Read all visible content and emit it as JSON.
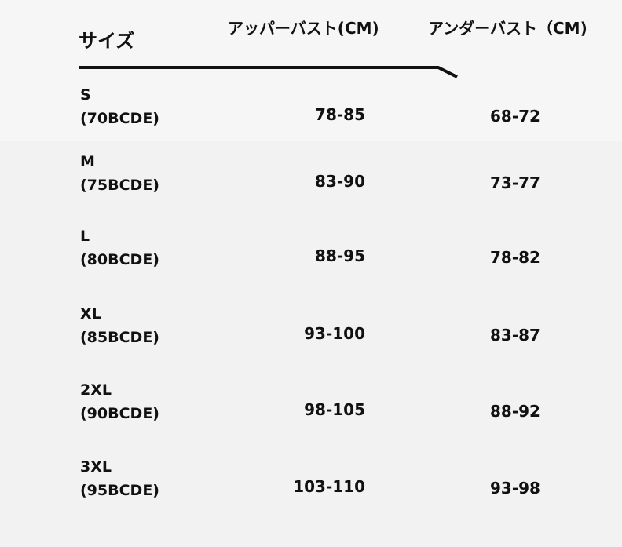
{
  "header": {
    "size": "サイズ",
    "upper_bust": "アッパーバスト(CM)",
    "under_bust": "アンダーバスト（CM)"
  },
  "rows": [
    {
      "size": "S",
      "cup": "(70BCDE)",
      "upper": "78-85",
      "under": "68-72"
    },
    {
      "size": "M",
      "cup": "(75BCDE)",
      "upper": "83-90",
      "under": "73-77"
    },
    {
      "size": "L",
      "cup": "(80BCDE)",
      "upper": "88-95",
      "under": "78-82"
    },
    {
      "size": "XL",
      "cup": "(85BCDE)",
      "upper": "93-100",
      "under": "83-87"
    },
    {
      "size": "2XL",
      "cup": "(90BCDE)",
      "upper": "98-105",
      "under": "88-92"
    },
    {
      "size": "3XL",
      "cup": "(95BCDE)",
      "upper": "103-110",
      "under": "93-98"
    }
  ]
}
